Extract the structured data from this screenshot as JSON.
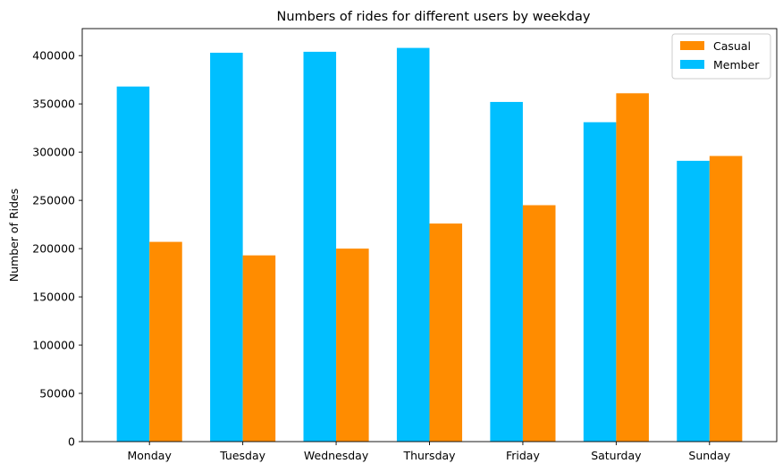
{
  "chart_data": {
    "type": "bar",
    "title": "Numbers of rides for different users by weekday",
    "xlabel": "",
    "ylabel": "Number of Rides",
    "categories": [
      "Monday",
      "Tuesday",
      "Wednesday",
      "Thursday",
      "Friday",
      "Saturday",
      "Sunday"
    ],
    "series": [
      {
        "name": "Member",
        "color": "#00BFFF",
        "values": [
          368000,
          403000,
          404000,
          408000,
          352000,
          331000,
          291000
        ]
      },
      {
        "name": "Casual",
        "color": "#FF8C00",
        "values": [
          207000,
          193000,
          200000,
          226000,
          245000,
          361000,
          296000
        ]
      }
    ],
    "legend_order": [
      "Casual",
      "Member"
    ],
    "legend_position": "upper right",
    "ylim": [
      0,
      428000
    ],
    "yticks": [
      "0",
      "50000",
      "100000",
      "150000",
      "200000",
      "250000",
      "300000",
      "350000",
      "400000"
    ],
    "grid": false
  }
}
